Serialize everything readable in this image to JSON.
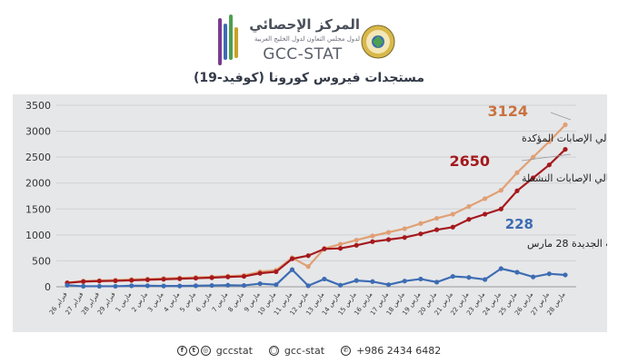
{
  "header": {
    "org_name_ar": "المركز الإحصائي",
    "org_sub_ar": "لدول مجلس التعاون لدول الخليج العربية",
    "org_name_en": "GCC-STAT",
    "title": "مستجدات فيروس كورونا (كوفيد-19)"
  },
  "colors": {
    "confirmed": "#e0a074",
    "active": "#a5191d",
    "new": "#3d6cb3",
    "chart_bg": "#e6e7e9",
    "confirmed_label": "#c8733f",
    "grid": "#cfd1d4"
  },
  "chart_data": {
    "type": "line",
    "ylim": [
      0,
      3500
    ],
    "yticks": [
      0,
      500,
      1000,
      1500,
      2000,
      2500,
      3000,
      3500
    ],
    "x": [
      "26 فبراير",
      "27 فبراير",
      "28 فبراير",
      "29 فبراير",
      "1 مارس",
      "2 مارس",
      "3 مارس",
      "4 مارس",
      "5 مارس",
      "6 مارس",
      "7 مارس",
      "8 مارس",
      "9 مارس",
      "10 مارس",
      "11 مارس",
      "12 مارس",
      "13 مارس",
      "14 مارس",
      "15 مارس",
      "16 مارس",
      "17 مارس",
      "18 مارس",
      "19 مارس",
      "20 مارس",
      "21 مارس",
      "22 مارس",
      "23 مارس",
      "24 مارس",
      "25 مارس",
      "26 مارس",
      "27 مارس",
      "28 مارس"
    ],
    "series": [
      {
        "key": "confirmed",
        "name": "إجمالي الإصابات المؤكدة",
        "values": [
          80,
          110,
          120,
          130,
          140,
          150,
          160,
          170,
          180,
          190,
          205,
          220,
          290,
          320,
          560,
          390,
          740,
          820,
          900,
          980,
          1050,
          1120,
          1220,
          1320,
          1400,
          1550,
          1700,
          1860,
          2200,
          2500,
          2800,
          3124
        ]
      },
      {
        "key": "active",
        "name": "إجمالي الإصابات النشطة",
        "values": [
          75,
          100,
          110,
          115,
          125,
          135,
          145,
          155,
          165,
          175,
          190,
          200,
          260,
          290,
          540,
          600,
          730,
          740,
          800,
          870,
          910,
          950,
          1020,
          1100,
          1150,
          1300,
          1400,
          1500,
          1850,
          2100,
          2350,
          2650
        ]
      },
      {
        "key": "new",
        "name": "الإصابات الجديدة 28 مارس",
        "values": [
          30,
          10,
          10,
          10,
          20,
          20,
          15,
          15,
          20,
          25,
          30,
          25,
          60,
          40,
          330,
          20,
          150,
          30,
          120,
          100,
          40,
          110,
          150,
          90,
          200,
          180,
          140,
          350,
          280,
          190,
          250,
          228
        ]
      }
    ],
    "annotations": [
      {
        "series": "confirmed",
        "value": "3124",
        "label": "إجمالي الإصابات المؤكدة"
      },
      {
        "series": "active",
        "value": "2650",
        "label": "إجمالي الإصابات النشطة"
      },
      {
        "series": "new",
        "value": "228",
        "label": "الإصابات الجديدة 28 مارس"
      }
    ]
  },
  "footer": {
    "handle1": "gccstat",
    "handle2": "gcc-stat",
    "phone": "+986 2434 6482"
  }
}
